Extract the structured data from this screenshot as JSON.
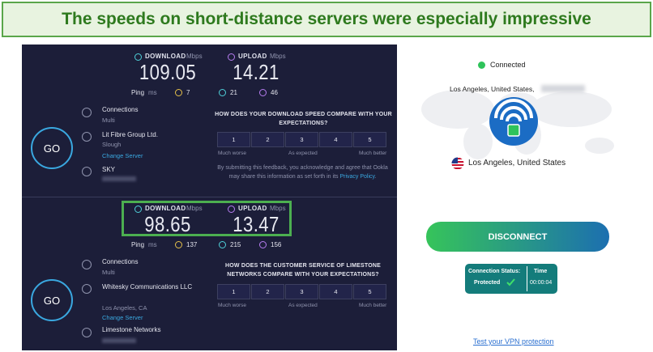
{
  "header": {
    "title": "The speeds on short-distance servers were especially impressive"
  },
  "speedtests": [
    {
      "download_label": "DOWNLOAD",
      "download_unit": "Mbps",
      "download": 109.05,
      "upload_label": "UPLOAD",
      "upload_unit": "Mbps",
      "upload": 14.21,
      "ping_label": "Ping",
      "ping_unit": "ms",
      "ping": [
        7,
        21,
        46
      ],
      "go": "GO",
      "connections_label": "Connections",
      "connections_value": "Multi",
      "provider": "Lit Fibre Group Ltd.",
      "location": "Slough",
      "change_server": "Change Server",
      "isp": "SKY",
      "question": "HOW DOES YOUR DOWNLOAD SPEED COMPARE WITH YOUR EXPECTATIONS?",
      "ratings": [
        1,
        2,
        3,
        4,
        5
      ],
      "scale": [
        "Much worse",
        "As expected",
        "Much better"
      ],
      "disclaimer": "By submitting this feedback, you acknowledge and agree that Ookla may share this information as set forth in its",
      "privacy_link": "Privacy Policy",
      "disclaimer_end": "."
    },
    {
      "download_label": "DOWNLOAD",
      "download_unit": "Mbps",
      "download": 98.65,
      "upload_label": "UPLOAD",
      "upload_unit": "Mbps",
      "upload": 13.47,
      "ping_label": "Ping",
      "ping_unit": "ms",
      "ping": [
        137,
        215,
        156
      ],
      "go": "GO",
      "connections_label": "Connections",
      "connections_value": "Multi",
      "provider": "Whitesky Communications LLC",
      "location": "Los Angeles, CA",
      "change_server": "Change Server",
      "isp": "Limestone Networks",
      "question": "HOW DOES THE CUSTOMER SERVICE OF LIMESTONE NETWORKS COMPARE WITH YOUR EXPECTATIONS?",
      "ratings": [
        1,
        2,
        3,
        4,
        5
      ],
      "scale": [
        "Much worse",
        "As expected",
        "Much better"
      ]
    }
  ],
  "vpn": {
    "status": "Connected",
    "server_location": "Los Angeles, United States,",
    "location": "Los Angeles, United States",
    "disconnect": "DISCONNECT",
    "connection_status_label": "Connection Status:",
    "connection_status": "Protected",
    "time_label": "Time",
    "time": "00:00:04",
    "test_link": "Test your VPN protection"
  }
}
